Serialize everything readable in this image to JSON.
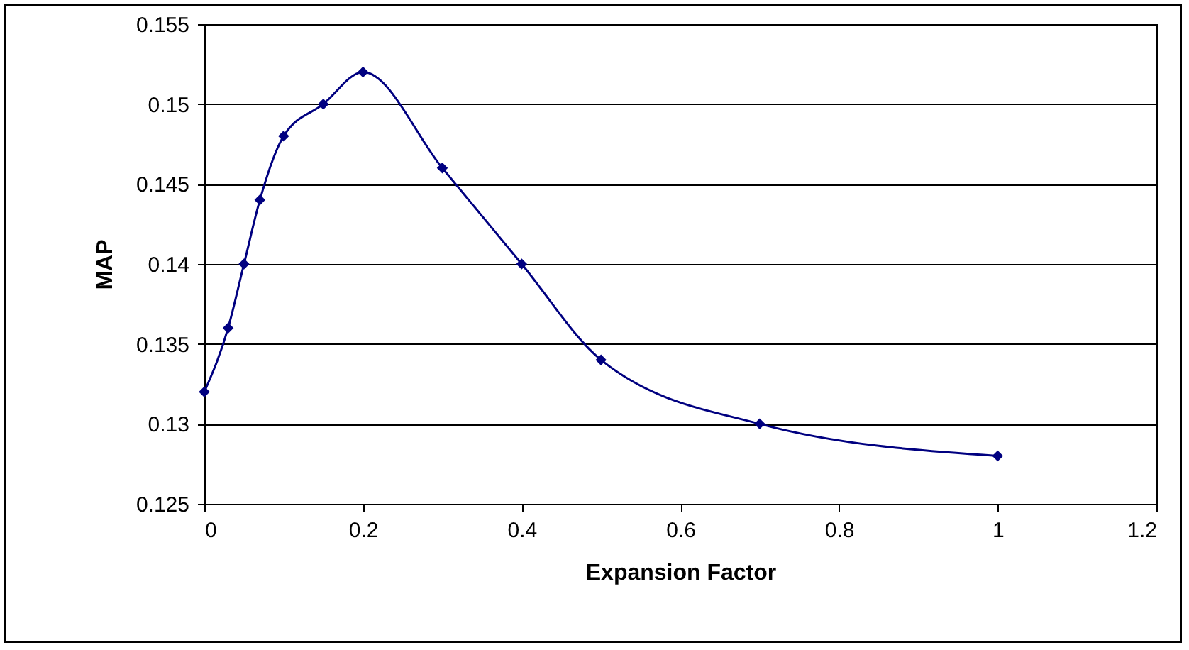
{
  "chart_data": {
    "type": "line",
    "xlabel": "Expansion Factor",
    "ylabel": "MAP",
    "x": [
      0,
      0.03,
      0.05,
      0.07,
      0.1,
      0.15,
      0.2,
      0.3,
      0.4,
      0.5,
      0.7,
      1.0
    ],
    "series": [
      {
        "color": "#000080",
        "values": [
          0.132,
          0.136,
          0.14,
          0.144,
          0.148,
          0.15,
          0.152,
          0.146,
          0.14,
          0.134,
          0.13,
          0.128
        ]
      }
    ],
    "xlim": [
      0,
      1.2
    ],
    "xticks": [
      0,
      0.2,
      0.4,
      0.6,
      0.8,
      1,
      1.2
    ],
    "ylim": [
      0.125,
      0.155
    ],
    "yticks": [
      0.125,
      0.13,
      0.135,
      0.14,
      0.145,
      0.15,
      0.155
    ],
    "grid": "y",
    "marker": "diamond",
    "line_style": "solid"
  }
}
